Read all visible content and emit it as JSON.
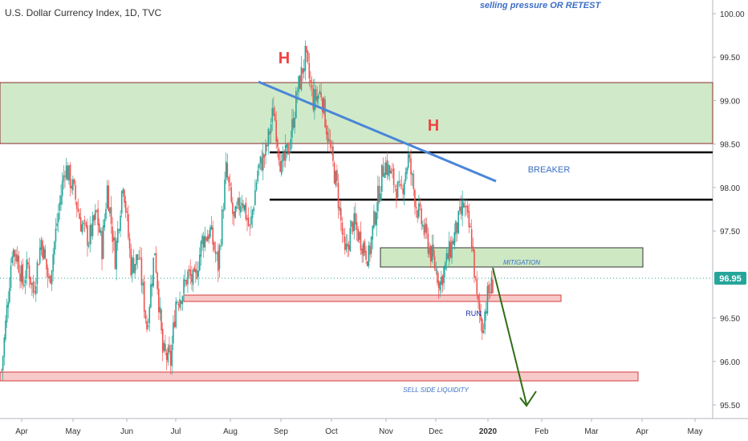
{
  "header": {
    "symbol_title": "U.S. Dollar Currency Index, 1D, TVC",
    "top_note": "selling pressure OR RETEST"
  },
  "chart_data": {
    "type": "candlestick",
    "title": "U.S. Dollar Currency Index, 1D, TVC",
    "ylim": [
      95.35,
      100.2
    ],
    "y_ticks": [
      "100.00",
      "99.50",
      "99.00",
      "98.50",
      "98.00",
      "97.50",
      "96.50",
      "96.00",
      "95.50"
    ],
    "x_ticks": [
      "Apr",
      "May",
      "Jun",
      "Jul",
      "Aug",
      "Sep",
      "Oct",
      "Nov",
      "Dec",
      "2020",
      "Feb",
      "Mar",
      "Apr",
      "May"
    ],
    "last_price": "96.95",
    "price_path": [
      [
        0,
        95.9
      ],
      [
        4,
        96.6
      ],
      [
        8,
        97.3
      ],
      [
        12,
        97.2
      ],
      [
        16,
        96.9
      ],
      [
        20,
        97.1
      ],
      [
        24,
        96.8
      ],
      [
        30,
        97.4
      ],
      [
        36,
        96.9
      ],
      [
        42,
        97.6
      ],
      [
        48,
        98.25
      ],
      [
        54,
        98.0
      ],
      [
        60,
        97.6
      ],
      [
        66,
        97.4
      ],
      [
        72,
        97.7
      ],
      [
        76,
        97.3
      ],
      [
        80,
        98.0
      ],
      [
        86,
        97.2
      ],
      [
        92,
        98.1
      ],
      [
        98,
        97.1
      ],
      [
        104,
        97.2
      ],
      [
        110,
        96.4
      ],
      [
        116,
        97.3
      ],
      [
        122,
        96.1
      ],
      [
        128,
        96.0
      ],
      [
        132,
        96.7
      ],
      [
        137,
        96.8
      ],
      [
        141,
        97.0
      ],
      [
        146,
        96.9
      ],
      [
        152,
        97.4
      ],
      [
        158,
        97.5
      ],
      [
        164,
        97.1
      ],
      [
        170,
        98.2
      ],
      [
        176,
        97.6
      ],
      [
        182,
        97.9
      ],
      [
        188,
        97.5
      ],
      [
        194,
        98.2
      ],
      [
        200,
        98.4
      ],
      [
        206,
        98.9
      ],
      [
        212,
        98.2
      ],
      [
        218,
        98.5
      ],
      [
        224,
        99.1
      ],
      [
        230,
        99.5
      ],
      [
        236,
        99.0
      ],
      [
        242,
        99.1
      ],
      [
        248,
        98.5
      ],
      [
        254,
        98.0
      ],
      [
        260,
        97.2
      ],
      [
        266,
        97.6
      ],
      [
        272,
        97.4
      ],
      [
        278,
        97.2
      ],
      [
        284,
        97.8
      ],
      [
        290,
        98.3
      ],
      [
        296,
        98.1
      ],
      [
        302,
        97.9
      ],
      [
        308,
        98.35
      ],
      [
        314,
        97.8
      ],
      [
        320,
        97.5
      ],
      [
        326,
        97.2
      ],
      [
        332,
        96.9
      ],
      [
        338,
        97.2
      ],
      [
        344,
        97.5
      ],
      [
        350,
        97.8
      ],
      [
        356,
        97.4
      ],
      [
        360,
        96.7
      ],
      [
        364,
        96.4
      ],
      [
        368,
        96.75
      ],
      [
        372,
        96.9
      ]
    ]
  },
  "annotations": {
    "head_left": "H",
    "head_right": "H",
    "breaker": "BREAKER",
    "mitigation": "MITIGATION",
    "run": "RUN",
    "sell_side": "SELL SIDE LIQUIDITY"
  },
  "colors": {
    "up_candle": "#26a69a",
    "down_candle": "#ef5350",
    "supply_zone": "#c8e6c0",
    "demand_zone": "#f8c9c9",
    "trendline": "#4a86d8",
    "arrow": "#2e6e17",
    "head_label": "#ef4444",
    "price_badge": "#26a69a"
  }
}
